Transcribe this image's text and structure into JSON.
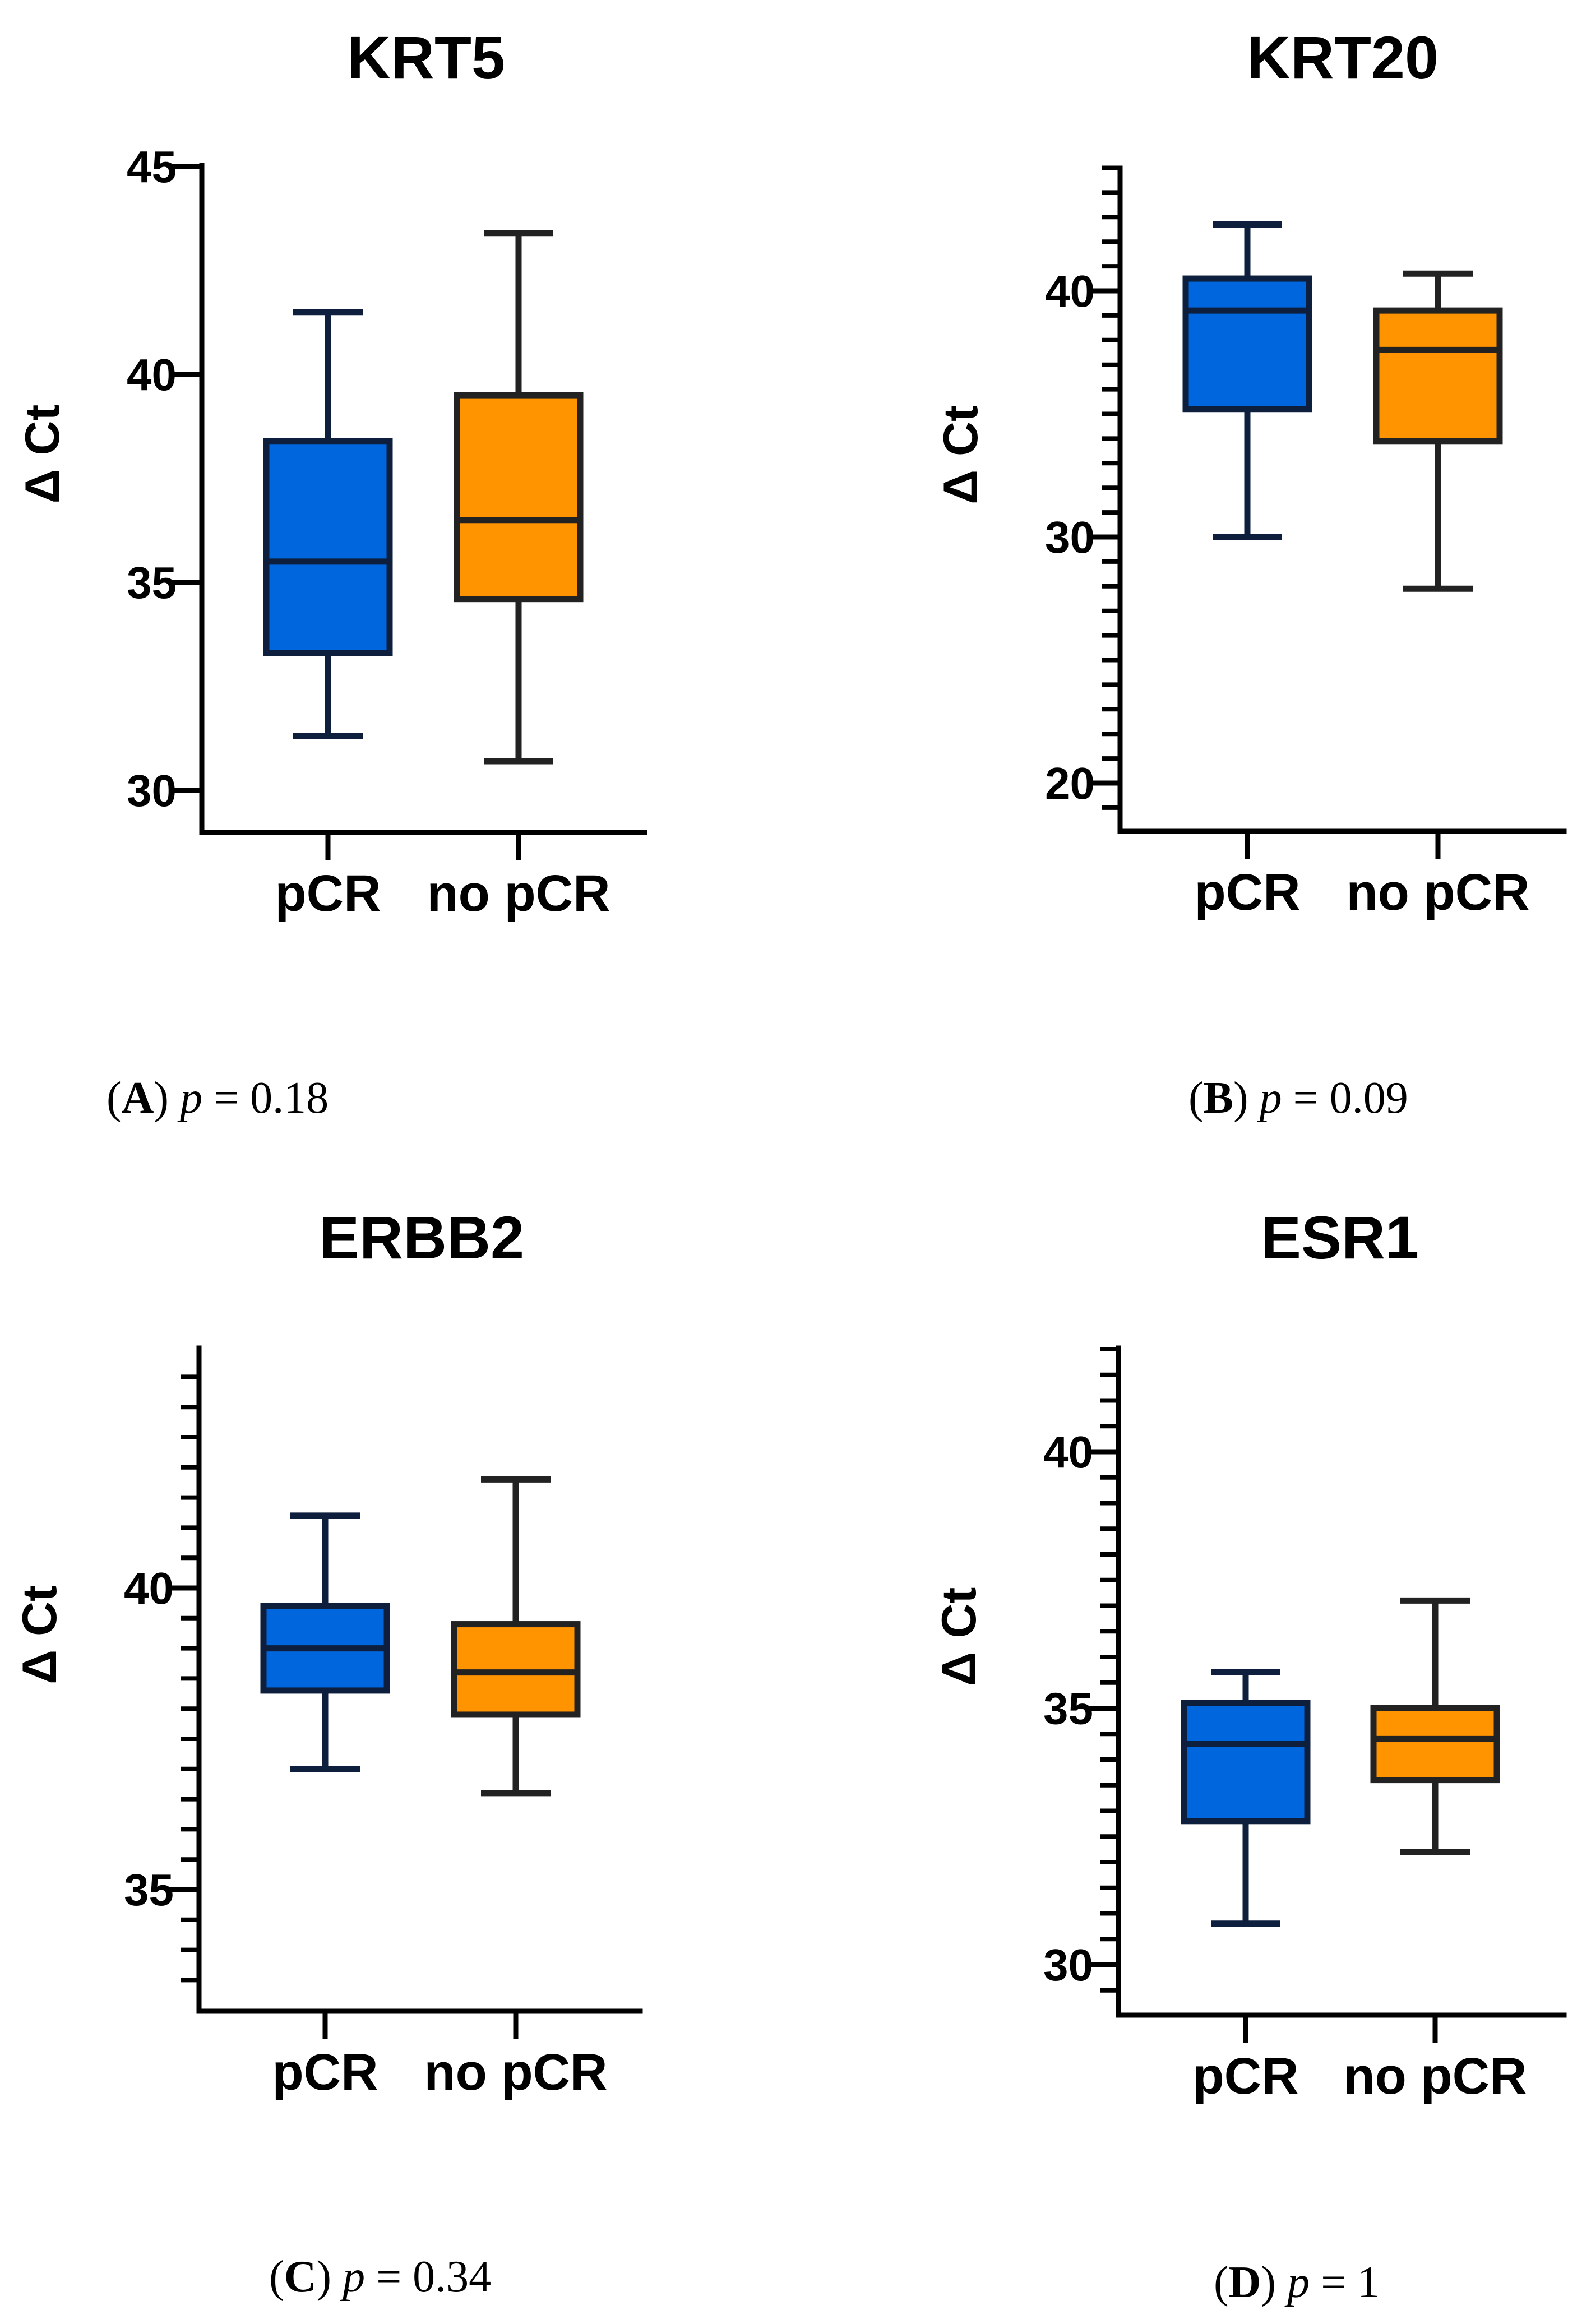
{
  "chart_data": [
    {
      "type": "box",
      "title": "KRT5",
      "ylabel": "Δ Ct",
      "xlabel": "",
      "ylim": [
        29,
        45
      ],
      "yticks": [
        30,
        35,
        40,
        45
      ],
      "minor_ticks": false,
      "categories": [
        "pCR",
        "no pCR"
      ],
      "series": [
        {
          "name": "pCR",
          "color": "#0066dd",
          "stroke": "#0d1f3d",
          "min": 31.3,
          "q1": 33.3,
          "median": 35.5,
          "q3": 38.4,
          "max": 41.5
        },
        {
          "name": "no pCR",
          "color": "#ff9300",
          "stroke": "#222222",
          "min": 30.7,
          "q1": 34.6,
          "median": 36.5,
          "q3": 39.5,
          "max": 43.4
        }
      ],
      "caption": {
        "label": "A",
        "p_symbol": "p",
        "p_text": " = 0.18"
      }
    },
    {
      "type": "box",
      "title": "KRT20",
      "ylabel": "Δ Ct",
      "xlabel": "",
      "ylim": [
        18,
        45
      ],
      "yticks": [
        20,
        30,
        40
      ],
      "minor_ticks": true,
      "minor_step": 1,
      "categories": [
        "pCR",
        "no pCR"
      ],
      "series": [
        {
          "name": "pCR",
          "color": "#0066dd",
          "stroke": "#0d1f3d",
          "min": 30.0,
          "q1": 35.2,
          "median": 39.2,
          "q3": 40.5,
          "max": 42.7
        },
        {
          "name": "no pCR",
          "color": "#ff9300",
          "stroke": "#222222",
          "min": 27.9,
          "q1": 33.9,
          "median": 37.6,
          "q3": 39.2,
          "max": 40.7
        }
      ],
      "caption": {
        "label": "B",
        "p_symbol": "p",
        "p_text": " = 0.09"
      }
    },
    {
      "type": "box",
      "title": "ERBB2",
      "ylabel": "Δ Ct",
      "xlabel": "",
      "ylim": [
        33,
        44
      ],
      "yticks": [
        35,
        40
      ],
      "minor_ticks": true,
      "minor_step": 0.5,
      "categories": [
        "pCR",
        "no pCR"
      ],
      "series": [
        {
          "name": "pCR",
          "color": "#0066dd",
          "stroke": "#0d1f3d",
          "min": 37.0,
          "q1": 38.3,
          "median": 39.0,
          "q3": 39.7,
          "max": 41.2
        },
        {
          "name": "no pCR",
          "color": "#ff9300",
          "stroke": "#222222",
          "min": 36.6,
          "q1": 37.9,
          "median": 38.6,
          "q3": 39.4,
          "max": 41.8
        }
      ],
      "caption": {
        "label": "C",
        "p_symbol": "p",
        "p_text": " = 0.34"
      }
    },
    {
      "type": "box",
      "title": "ESR1",
      "ylabel": "Δ Ct",
      "xlabel": "",
      "ylim": [
        29,
        42
      ],
      "yticks": [
        30,
        35,
        40
      ],
      "minor_ticks": true,
      "minor_step": 0.5,
      "categories": [
        "pCR",
        "no pCR"
      ],
      "series": [
        {
          "name": "pCR",
          "color": "#0066dd",
          "stroke": "#0d1f3d",
          "min": 30.8,
          "q1": 32.8,
          "median": 34.3,
          "q3": 35.1,
          "max": 35.7
        },
        {
          "name": "no pCR",
          "color": "#ff9300",
          "stroke": "#222222",
          "min": 32.2,
          "q1": 33.6,
          "median": 34.4,
          "q3": 35.0,
          "max": 37.1
        }
      ],
      "caption": {
        "label": "D",
        "p_symbol": "p",
        "p_text": " = 1"
      }
    }
  ]
}
